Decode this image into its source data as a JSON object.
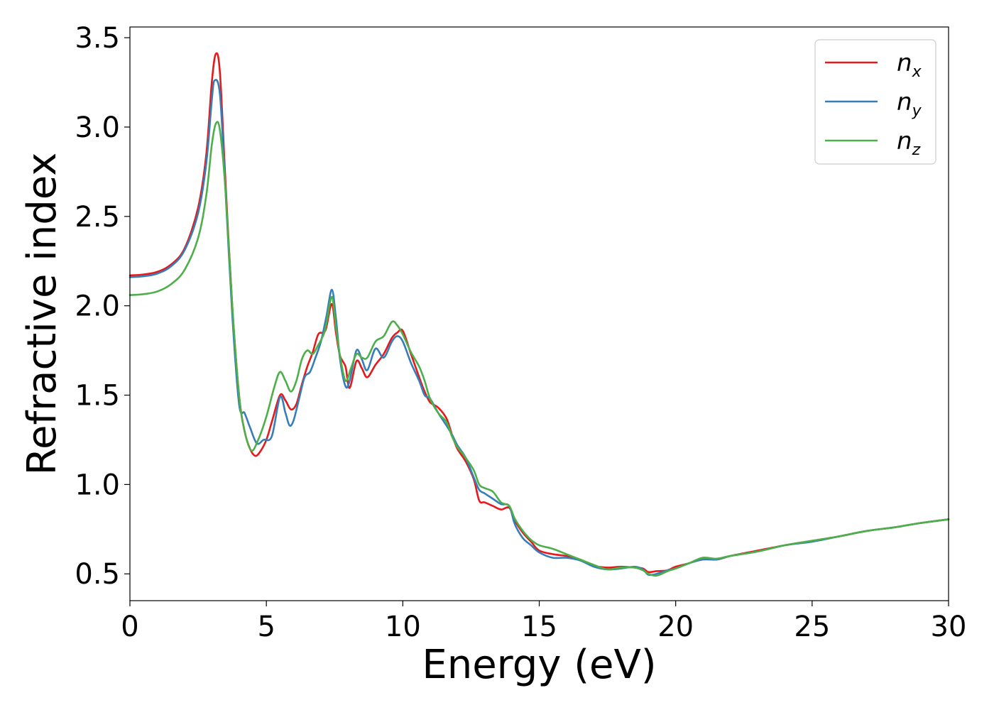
{
  "chart_data": {
    "type": "line",
    "xlabel": "Energy (eV)",
    "ylabel": "Refractive index",
    "xlim": [
      0,
      30
    ],
    "ylim": [
      0.35,
      3.56
    ],
    "xticks": [
      0,
      5,
      10,
      15,
      20,
      25,
      30
    ],
    "xtick_labels": [
      "0",
      "5",
      "10",
      "15",
      "20",
      "25",
      "30"
    ],
    "yticks": [
      0.5,
      1.0,
      1.5,
      2.0,
      2.5,
      3.0,
      3.5
    ],
    "ytick_labels": [
      "0.5",
      "1.0",
      "1.5",
      "2.0",
      "2.5",
      "3.0",
      "3.5"
    ],
    "grid": false,
    "legend_position": "top-right",
    "series": [
      {
        "name": "n_x",
        "legend_base": "n",
        "legend_sub": "x",
        "color": "#e41a1c",
        "points": [
          [
            0,
            2.17
          ],
          [
            0.5,
            2.175
          ],
          [
            1.0,
            2.19
          ],
          [
            1.5,
            2.23
          ],
          [
            2.0,
            2.32
          ],
          [
            2.5,
            2.55
          ],
          [
            2.8,
            2.85
          ],
          [
            3.0,
            3.25
          ],
          [
            3.15,
            3.41
          ],
          [
            3.3,
            3.3
          ],
          [
            3.5,
            2.7
          ],
          [
            3.75,
            2.0
          ],
          [
            4.0,
            1.5
          ],
          [
            4.2,
            1.3
          ],
          [
            4.4,
            1.2
          ],
          [
            4.6,
            1.16
          ],
          [
            4.8,
            1.19
          ],
          [
            5.0,
            1.25
          ],
          [
            5.2,
            1.35
          ],
          [
            5.5,
            1.5
          ],
          [
            5.7,
            1.47
          ],
          [
            5.9,
            1.42
          ],
          [
            6.1,
            1.45
          ],
          [
            6.3,
            1.56
          ],
          [
            6.5,
            1.66
          ],
          [
            6.7,
            1.74
          ],
          [
            6.9,
            1.84
          ],
          [
            7.1,
            1.85
          ],
          [
            7.2,
            1.88
          ],
          [
            7.4,
            2.01
          ],
          [
            7.55,
            1.85
          ],
          [
            7.7,
            1.72
          ],
          [
            7.9,
            1.66
          ],
          [
            8.05,
            1.54
          ],
          [
            8.3,
            1.69
          ],
          [
            8.5,
            1.65
          ],
          [
            8.7,
            1.6
          ],
          [
            9.0,
            1.67
          ],
          [
            9.3,
            1.73
          ],
          [
            9.6,
            1.82
          ],
          [
            9.8,
            1.85
          ],
          [
            10.0,
            1.86
          ],
          [
            10.3,
            1.73
          ],
          [
            10.6,
            1.6
          ],
          [
            10.8,
            1.52
          ],
          [
            11.0,
            1.46
          ],
          [
            11.3,
            1.43
          ],
          [
            11.6,
            1.37
          ],
          [
            11.8,
            1.28
          ],
          [
            12.0,
            1.2
          ],
          [
            12.3,
            1.13
          ],
          [
            12.6,
            1.03
          ],
          [
            12.8,
            0.91
          ],
          [
            13.0,
            0.9
          ],
          [
            13.3,
            0.88
          ],
          [
            13.6,
            0.86
          ],
          [
            13.9,
            0.87
          ],
          [
            14.1,
            0.8
          ],
          [
            14.4,
            0.73
          ],
          [
            14.7,
            0.68
          ],
          [
            15.0,
            0.63
          ],
          [
            15.5,
            0.61
          ],
          [
            16.0,
            0.6
          ],
          [
            16.5,
            0.58
          ],
          [
            17.0,
            0.545
          ],
          [
            17.5,
            0.535
          ],
          [
            18.0,
            0.54
          ],
          [
            18.5,
            0.535
          ],
          [
            18.8,
            0.53
          ],
          [
            19.0,
            0.51
          ],
          [
            19.3,
            0.515
          ],
          [
            19.7,
            0.52
          ],
          [
            20.0,
            0.54
          ],
          [
            20.5,
            0.56
          ],
          [
            21.0,
            0.59
          ],
          [
            21.5,
            0.58
          ],
          [
            22.0,
            0.6
          ],
          [
            23.0,
            0.63
          ],
          [
            24.0,
            0.66
          ],
          [
            25.0,
            0.685
          ],
          [
            26.0,
            0.71
          ],
          [
            27.0,
            0.74
          ],
          [
            28.0,
            0.76
          ],
          [
            29.0,
            0.785
          ],
          [
            30.0,
            0.805
          ]
        ]
      },
      {
        "name": "n_y",
        "legend_base": "n",
        "legend_sub": "y",
        "color": "#377eb8",
        "points": [
          [
            0,
            2.16
          ],
          [
            0.5,
            2.165
          ],
          [
            1.0,
            2.18
          ],
          [
            1.5,
            2.22
          ],
          [
            2.0,
            2.31
          ],
          [
            2.5,
            2.52
          ],
          [
            2.8,
            2.8
          ],
          [
            3.0,
            3.15
          ],
          [
            3.1,
            3.26
          ],
          [
            3.3,
            3.18
          ],
          [
            3.5,
            2.65
          ],
          [
            3.75,
            1.95
          ],
          [
            4.0,
            1.45
          ],
          [
            4.2,
            1.4
          ],
          [
            4.4,
            1.32
          ],
          [
            4.65,
            1.23
          ],
          [
            4.9,
            1.25
          ],
          [
            5.2,
            1.27
          ],
          [
            5.5,
            1.49
          ],
          [
            5.7,
            1.4
          ],
          [
            5.85,
            1.33
          ],
          [
            6.0,
            1.36
          ],
          [
            6.2,
            1.48
          ],
          [
            6.4,
            1.6
          ],
          [
            6.6,
            1.63
          ],
          [
            6.8,
            1.71
          ],
          [
            7.0,
            1.8
          ],
          [
            7.2,
            1.94
          ],
          [
            7.4,
            2.09
          ],
          [
            7.55,
            1.93
          ],
          [
            7.7,
            1.7
          ],
          [
            7.9,
            1.55
          ],
          [
            8.05,
            1.58
          ],
          [
            8.3,
            1.75
          ],
          [
            8.5,
            1.7
          ],
          [
            8.7,
            1.64
          ],
          [
            9.0,
            1.76
          ],
          [
            9.3,
            1.71
          ],
          [
            9.6,
            1.8
          ],
          [
            9.8,
            1.83
          ],
          [
            10.0,
            1.8
          ],
          [
            10.3,
            1.68
          ],
          [
            10.6,
            1.58
          ],
          [
            10.8,
            1.5
          ],
          [
            11.0,
            1.48
          ],
          [
            11.3,
            1.4
          ],
          [
            11.6,
            1.33
          ],
          [
            11.8,
            1.28
          ],
          [
            12.0,
            1.22
          ],
          [
            12.3,
            1.15
          ],
          [
            12.6,
            1.04
          ],
          [
            12.8,
            0.97
          ],
          [
            13.0,
            0.95
          ],
          [
            13.3,
            0.92
          ],
          [
            13.6,
            0.89
          ],
          [
            13.9,
            0.88
          ],
          [
            14.1,
            0.78
          ],
          [
            14.4,
            0.7
          ],
          [
            14.7,
            0.66
          ],
          [
            15.0,
            0.62
          ],
          [
            15.5,
            0.59
          ],
          [
            16.0,
            0.59
          ],
          [
            16.5,
            0.575
          ],
          [
            17.0,
            0.54
          ],
          [
            17.5,
            0.525
          ],
          [
            18.0,
            0.53
          ],
          [
            18.5,
            0.54
          ],
          [
            18.8,
            0.525
          ],
          [
            19.0,
            0.495
          ],
          [
            19.3,
            0.5
          ],
          [
            19.7,
            0.52
          ],
          [
            20.0,
            0.53
          ],
          [
            20.5,
            0.56
          ],
          [
            21.0,
            0.58
          ],
          [
            21.5,
            0.58
          ],
          [
            22.0,
            0.6
          ],
          [
            23.0,
            0.625
          ],
          [
            24.0,
            0.66
          ],
          [
            25.0,
            0.68
          ],
          [
            26.0,
            0.71
          ],
          [
            27.0,
            0.74
          ],
          [
            28.0,
            0.76
          ],
          [
            29.0,
            0.785
          ],
          [
            30.0,
            0.805
          ]
        ]
      },
      {
        "name": "n_z",
        "legend_base": "n",
        "legend_sub": "z",
        "color": "#4daf4a",
        "points": [
          [
            0,
            2.06
          ],
          [
            0.5,
            2.065
          ],
          [
            1.0,
            2.08
          ],
          [
            1.5,
            2.12
          ],
          [
            2.0,
            2.2
          ],
          [
            2.5,
            2.38
          ],
          [
            2.8,
            2.62
          ],
          [
            3.0,
            2.9
          ],
          [
            3.15,
            3.02
          ],
          [
            3.3,
            2.98
          ],
          [
            3.5,
            2.65
          ],
          [
            3.75,
            2.0
          ],
          [
            4.0,
            1.5
          ],
          [
            4.2,
            1.3
          ],
          [
            4.45,
            1.19
          ],
          [
            4.7,
            1.25
          ],
          [
            5.0,
            1.38
          ],
          [
            5.3,
            1.55
          ],
          [
            5.5,
            1.63
          ],
          [
            5.7,
            1.58
          ],
          [
            5.9,
            1.52
          ],
          [
            6.1,
            1.58
          ],
          [
            6.3,
            1.7
          ],
          [
            6.5,
            1.75
          ],
          [
            6.7,
            1.73
          ],
          [
            6.9,
            1.78
          ],
          [
            7.1,
            1.84
          ],
          [
            7.2,
            1.9
          ],
          [
            7.4,
            2.05
          ],
          [
            7.55,
            1.88
          ],
          [
            7.7,
            1.72
          ],
          [
            7.9,
            1.58
          ],
          [
            8.1,
            1.65
          ],
          [
            8.3,
            1.73
          ],
          [
            8.5,
            1.71
          ],
          [
            8.7,
            1.71
          ],
          [
            9.0,
            1.8
          ],
          [
            9.3,
            1.83
          ],
          [
            9.6,
            1.91
          ],
          [
            9.8,
            1.89
          ],
          [
            10.0,
            1.84
          ],
          [
            10.3,
            1.74
          ],
          [
            10.6,
            1.66
          ],
          [
            10.8,
            1.58
          ],
          [
            11.0,
            1.48
          ],
          [
            11.3,
            1.4
          ],
          [
            11.6,
            1.35
          ],
          [
            11.8,
            1.27
          ],
          [
            12.0,
            1.21
          ],
          [
            12.3,
            1.15
          ],
          [
            12.6,
            1.08
          ],
          [
            12.8,
            1.0
          ],
          [
            13.0,
            0.98
          ],
          [
            13.3,
            0.96
          ],
          [
            13.6,
            0.9
          ],
          [
            13.9,
            0.88
          ],
          [
            14.1,
            0.81
          ],
          [
            14.4,
            0.74
          ],
          [
            14.7,
            0.69
          ],
          [
            15.0,
            0.66
          ],
          [
            15.5,
            0.64
          ],
          [
            16.0,
            0.61
          ],
          [
            16.5,
            0.58
          ],
          [
            17.0,
            0.55
          ],
          [
            17.5,
            0.525
          ],
          [
            18.0,
            0.535
          ],
          [
            18.5,
            0.535
          ],
          [
            18.8,
            0.52
          ],
          [
            19.0,
            0.5
          ],
          [
            19.3,
            0.49
          ],
          [
            19.7,
            0.515
          ],
          [
            20.0,
            0.53
          ],
          [
            20.5,
            0.56
          ],
          [
            21.0,
            0.59
          ],
          [
            21.5,
            0.585
          ],
          [
            22.0,
            0.6
          ],
          [
            23.0,
            0.625
          ],
          [
            24.0,
            0.66
          ],
          [
            25.0,
            0.685
          ],
          [
            26.0,
            0.71
          ],
          [
            27.0,
            0.74
          ],
          [
            28.0,
            0.76
          ],
          [
            29.0,
            0.785
          ],
          [
            30.0,
            0.805
          ]
        ]
      }
    ]
  }
}
